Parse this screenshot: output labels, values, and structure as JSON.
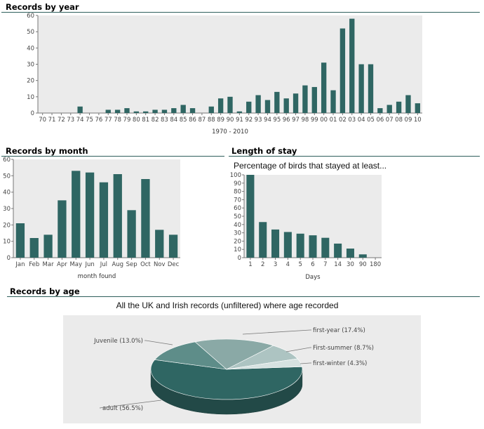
{
  "sections": {
    "year": "Records by year",
    "month": "Records by month",
    "stay": "Length of stay",
    "age": "Records by age"
  },
  "colors": {
    "bar": "#2f6663",
    "plot_bg": "#ebebeb",
    "rule": "#2f5f5c",
    "pie": [
      "#2f6663",
      "#5e8d89",
      "#8aa9a6",
      "#adc4c2",
      "#d6e2e1"
    ]
  },
  "chart_data": [
    {
      "id": "year",
      "type": "bar",
      "title": "",
      "xlabel": "1970 - 2010",
      "ylabel": "",
      "ylim": [
        0,
        60
      ],
      "yticks": [
        0,
        10,
        20,
        30,
        40,
        50,
        60
      ],
      "grid": false,
      "categories": [
        "70",
        "71",
        "72",
        "73",
        "74",
        "75",
        "76",
        "77",
        "78",
        "79",
        "80",
        "81",
        "82",
        "83",
        "84",
        "85",
        "86",
        "87",
        "88",
        "89",
        "90",
        "91",
        "92",
        "93",
        "94",
        "95",
        "96",
        "97",
        "98",
        "99",
        "00",
        "01",
        "02",
        "03",
        "04",
        "05",
        "06",
        "07",
        "08",
        "09",
        "10"
      ],
      "values": [
        0,
        0,
        0,
        0,
        4,
        0,
        0,
        2,
        2,
        3,
        1,
        1,
        2,
        2,
        3,
        5,
        3,
        0,
        4,
        9,
        10,
        1,
        7,
        11,
        8,
        13,
        9,
        12,
        17,
        16,
        31,
        14,
        52,
        58,
        30,
        30,
        3,
        5,
        7,
        11,
        6
      ]
    },
    {
      "id": "month",
      "type": "bar",
      "title": "",
      "xlabel": "month found",
      "ylabel": "",
      "ylim": [
        0,
        60
      ],
      "yticks": [
        0,
        10,
        20,
        30,
        40,
        50,
        60
      ],
      "grid": false,
      "categories": [
        "Jan",
        "Feb",
        "Mar",
        "Apr",
        "May",
        "Jun",
        "Jul",
        "Aug",
        "Sep",
        "Oct",
        "Nov",
        "Dec"
      ],
      "values": [
        21,
        12,
        14,
        35,
        53,
        52,
        46,
        51,
        29,
        48,
        17,
        14
      ]
    },
    {
      "id": "stay",
      "type": "bar",
      "title": "Percentage of birds that stayed at least...",
      "xlabel": "Days",
      "ylabel": "",
      "ylim": [
        0,
        100
      ],
      "yticks": [
        0,
        10,
        20,
        30,
        40,
        50,
        60,
        70,
        80,
        90,
        100
      ],
      "grid": false,
      "categories": [
        "1",
        "2",
        "3",
        "4",
        "5",
        "6",
        "7",
        "14",
        "30",
        "90",
        "180"
      ],
      "values": [
        100,
        43,
        34,
        31,
        29,
        27,
        24,
        17,
        11,
        4,
        0
      ]
    },
    {
      "id": "age",
      "type": "pie",
      "title": "All the UK and Irish records (unfiltered) where age recorded",
      "slices": [
        {
          "label": "adult (56.5%)",
          "value": 56.5
        },
        {
          "label": "Juvenile (13.0%)",
          "value": 13.0
        },
        {
          "label": "first-year (17.4%)",
          "value": 17.4
        },
        {
          "label": "First-summer (8.7%)",
          "value": 8.7
        },
        {
          "label": "first-winter (4.3%)",
          "value": 4.3
        }
      ]
    }
  ]
}
